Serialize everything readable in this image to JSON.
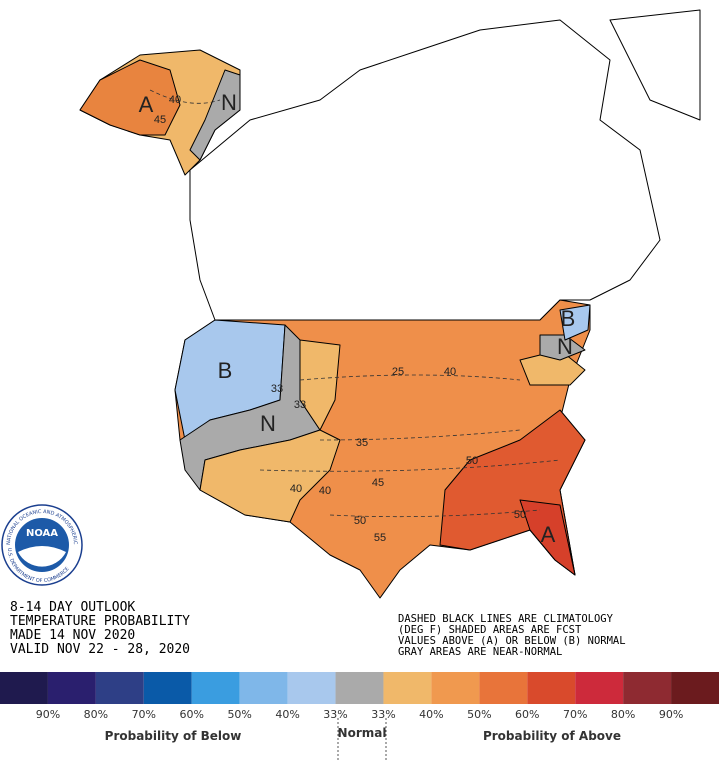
{
  "map": {
    "labels": [
      "A",
      "40",
      "45",
      "N",
      "B",
      "N",
      "33",
      "33",
      "25",
      "40",
      "35",
      "45",
      "40",
      "40",
      "50",
      "50",
      "55",
      "50",
      "A",
      "B",
      "N"
    ],
    "info_left": [
      "8-14 DAY OUTLOOK",
      "TEMPERATURE PROBABILITY",
      "MADE  14 NOV 2020",
      "VALID  NOV 22 - 28, 2020"
    ],
    "info_right": [
      "DASHED BLACK LINES ARE CLIMATOLOGY",
      "(DEG F) SHADED AREAS ARE FCST",
      "VALUES ABOVE (A) OR BELOW (B) NORMAL",
      "GRAY AREAS ARE NEAR-NORMAL"
    ]
  },
  "logo": {
    "name": "NOAA",
    "ring_top": "NATIONAL OCEANIC AND ATMOSPHERIC ADMINISTRATION",
    "ring_bottom": "U.S. DEPARTMENT OF COMMERCE"
  },
  "legend": {
    "colors": [
      "#1f1a4e",
      "#2a1f6e",
      "#2e3f86",
      "#0a5aa8",
      "#3a9de0",
      "#7fb7e9",
      "#a8c8ed",
      "#aaaaaa",
      "#f0b86a",
      "#f0994f",
      "#e8743a",
      "#d94a2c",
      "#cd2a3b",
      "#8e2a31",
      "#6b1b1e"
    ],
    "labels": [
      "90%",
      "80%",
      "70%",
      "60%",
      "50%",
      "40%",
      "33%",
      "33%",
      "40%",
      "50%",
      "60%",
      "70%",
      "80%",
      "90%"
    ],
    "below": "Probability of Below",
    "normal": "Normal",
    "above": "Probability of Above"
  }
}
